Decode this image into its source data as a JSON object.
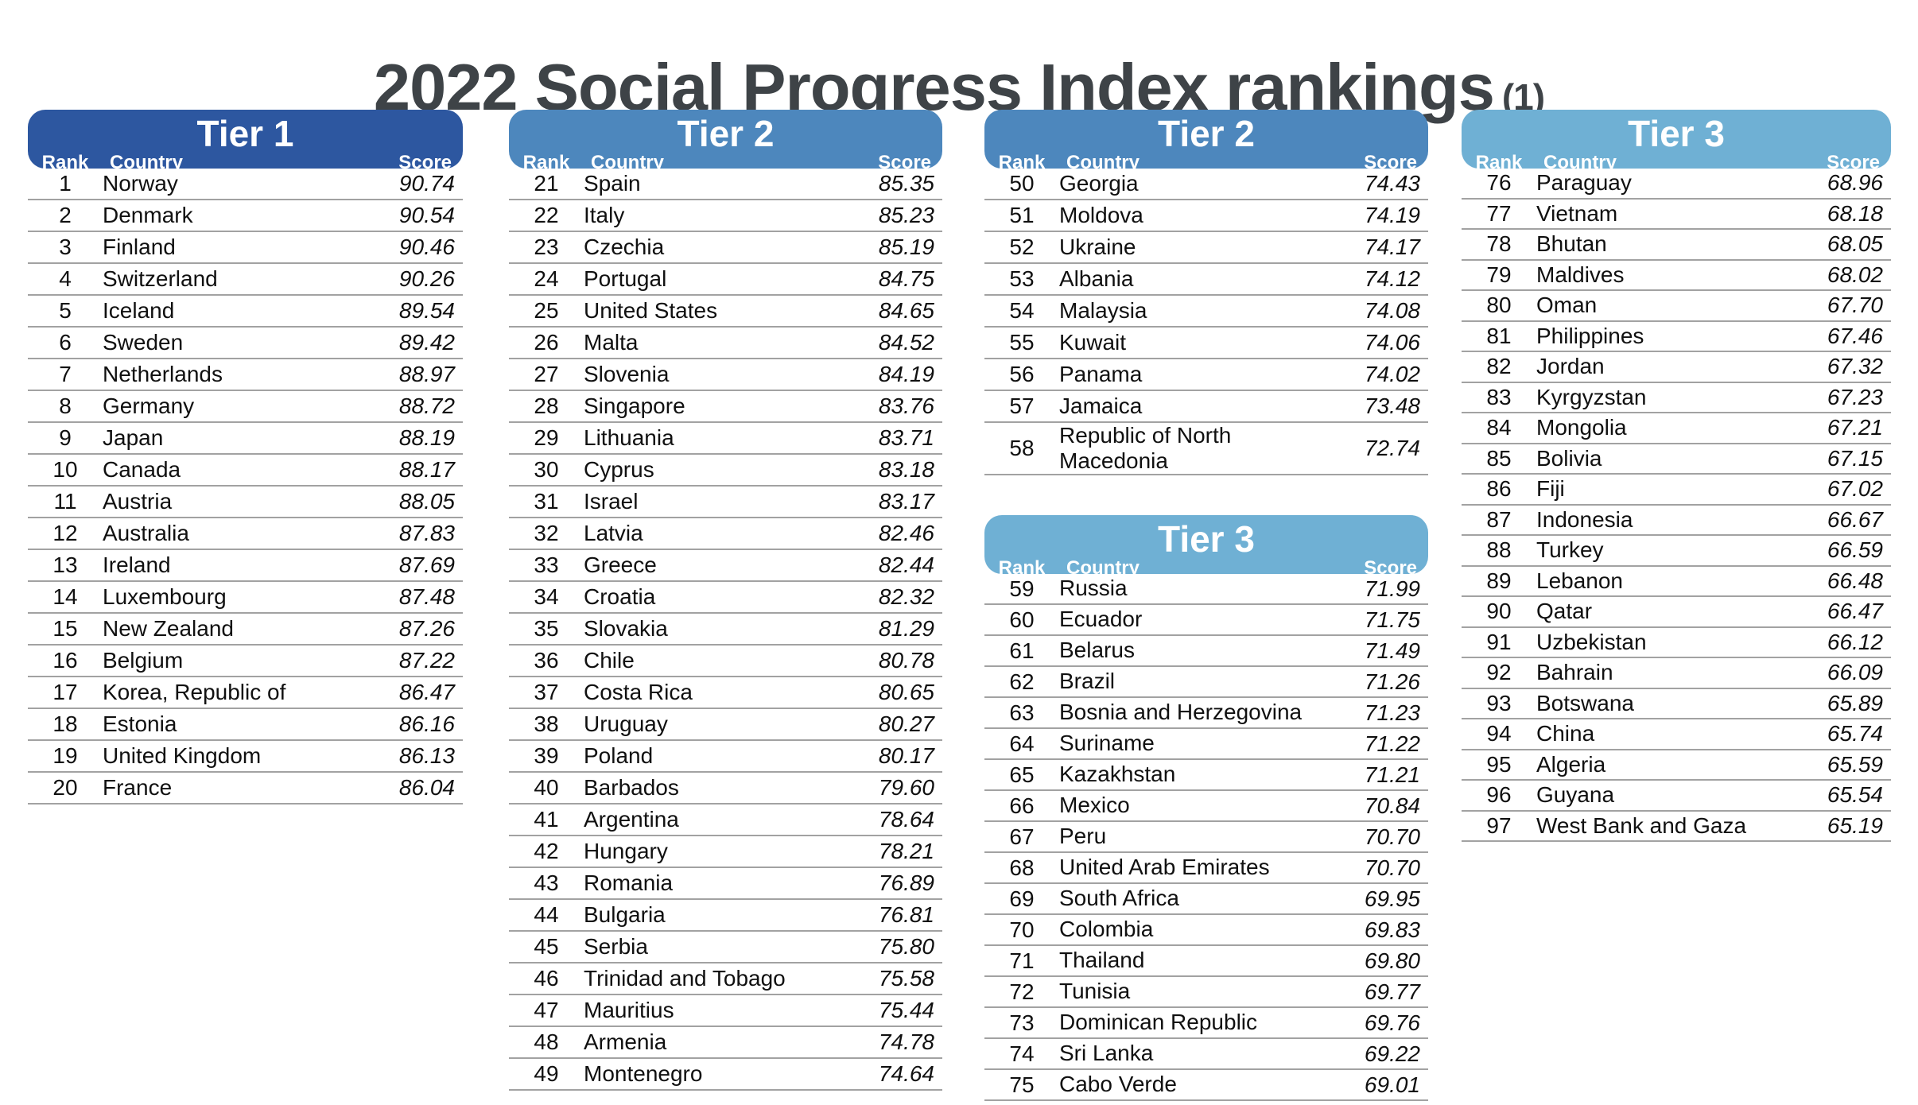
{
  "title": {
    "main": "2022 Social Progress Index rankings",
    "footnote_marker": "(1)"
  },
  "labels": {
    "rank": "Rank",
    "country": "Country",
    "score": "Score"
  },
  "colors": {
    "tier1": "#2d57a0",
    "tier2": "#4d87bd",
    "tier3": "#6fb0d4",
    "title_text": "#3e4347",
    "row_line": "#a2a2a2"
  },
  "tables": [
    {
      "tier_label": "Tier 1",
      "tier": "tier1",
      "rows": [
        [
          "1",
          "Norway",
          "90.74"
        ],
        [
          "2",
          "Denmark",
          "90.54"
        ],
        [
          "3",
          "Finland",
          "90.46"
        ],
        [
          "4",
          "Switzerland",
          "90.26"
        ],
        [
          "5",
          "Iceland",
          "89.54"
        ],
        [
          "6",
          "Sweden",
          "89.42"
        ],
        [
          "7",
          "Netherlands",
          "88.97"
        ],
        [
          "8",
          "Germany",
          "88.72"
        ],
        [
          "9",
          "Japan",
          "88.19"
        ],
        [
          "10",
          "Canada",
          "88.17"
        ],
        [
          "11",
          "Austria",
          "88.05"
        ],
        [
          "12",
          "Australia",
          "87.83"
        ],
        [
          "13",
          "Ireland",
          "87.69"
        ],
        [
          "14",
          "Luxembourg",
          "87.48"
        ],
        [
          "15",
          "New Zealand",
          "87.26"
        ],
        [
          "16",
          "Belgium",
          "87.22"
        ],
        [
          "17",
          "Korea, Republic of",
          "86.47"
        ],
        [
          "18",
          "Estonia",
          "86.16"
        ],
        [
          "19",
          "United Kingdom",
          "86.13"
        ],
        [
          "20",
          "France",
          "86.04"
        ]
      ]
    },
    {
      "tier_label": "Tier 2",
      "tier": "tier2",
      "rows": [
        [
          "21",
          "Spain",
          "85.35"
        ],
        [
          "22",
          "Italy",
          "85.23"
        ],
        [
          "23",
          "Czechia",
          "85.19"
        ],
        [
          "24",
          "Portugal",
          "84.75"
        ],
        [
          "25",
          "United States",
          "84.65"
        ],
        [
          "26",
          "Malta",
          "84.52"
        ],
        [
          "27",
          "Slovenia",
          "84.19"
        ],
        [
          "28",
          "Singapore",
          "83.76"
        ],
        [
          "29",
          "Lithuania",
          "83.71"
        ],
        [
          "30",
          "Cyprus",
          "83.18"
        ],
        [
          "31",
          "Israel",
          "83.17"
        ],
        [
          "32",
          "Latvia",
          "82.46"
        ],
        [
          "33",
          "Greece",
          "82.44"
        ],
        [
          "34",
          "Croatia",
          "82.32"
        ],
        [
          "35",
          "Slovakia",
          "81.29"
        ],
        [
          "36",
          "Chile",
          "80.78"
        ],
        [
          "37",
          "Costa Rica",
          "80.65"
        ],
        [
          "38",
          "Uruguay",
          "80.27"
        ],
        [
          "39",
          "Poland",
          "80.17"
        ],
        [
          "40",
          "Barbados",
          "79.60"
        ],
        [
          "41",
          "Argentina",
          "78.64"
        ],
        [
          "42",
          "Hungary",
          "78.21"
        ],
        [
          "43",
          "Romania",
          "76.89"
        ],
        [
          "44",
          "Bulgaria",
          "76.81"
        ],
        [
          "45",
          "Serbia",
          "75.80"
        ],
        [
          "46",
          "Trinidad and Tobago",
          "75.58"
        ],
        [
          "47",
          "Mauritius",
          "75.44"
        ],
        [
          "48",
          "Armenia",
          "74.78"
        ],
        [
          "49",
          "Montenegro",
          "74.64"
        ]
      ]
    },
    {
      "tier_label": "Tier 2",
      "tier": "tier2",
      "rows": [
        [
          "50",
          "Georgia",
          "74.43"
        ],
        [
          "51",
          "Moldova",
          "74.19"
        ],
        [
          "52",
          "Ukraine",
          "74.17"
        ],
        [
          "53",
          "Albania",
          "74.12"
        ],
        [
          "54",
          "Malaysia",
          "74.08"
        ],
        [
          "55",
          "Kuwait",
          "74.06"
        ],
        [
          "56",
          "Panama",
          "74.02"
        ],
        [
          "57",
          "Jamaica",
          "73.48"
        ],
        [
          "58",
          "Republic of North Macedonia",
          "72.74",
          "tall"
        ]
      ]
    },
    {
      "tier_label": "Tier 3",
      "tier": "tier3",
      "rows": [
        [
          "59",
          "Russia",
          "71.99"
        ],
        [
          "60",
          "Ecuador",
          "71.75"
        ],
        [
          "61",
          "Belarus",
          "71.49"
        ],
        [
          "62",
          "Brazil",
          "71.26"
        ],
        [
          "63",
          "Bosnia and Herzegovina",
          "71.23"
        ],
        [
          "64",
          "Suriname",
          "71.22"
        ],
        [
          "65",
          "Kazakhstan",
          "71.21"
        ],
        [
          "66",
          "Mexico",
          "70.84"
        ],
        [
          "67",
          "Peru",
          "70.70"
        ],
        [
          "68",
          "United Arab Emirates",
          "70.70"
        ],
        [
          "69",
          "South Africa",
          "69.95"
        ],
        [
          "70",
          "Colombia",
          "69.83"
        ],
        [
          "71",
          "Thailand",
          "69.80"
        ],
        [
          "72",
          "Tunisia",
          "69.77"
        ],
        [
          "73",
          "Dominican Republic",
          "69.76"
        ],
        [
          "74",
          "Sri Lanka",
          "69.22"
        ],
        [
          "75",
          "Cabo Verde",
          "69.01"
        ]
      ]
    },
    {
      "tier_label": "Tier 3",
      "tier": "tier3",
      "rows": [
        [
          "76",
          "Paraguay",
          "68.96"
        ],
        [
          "77",
          "Vietnam",
          "68.18"
        ],
        [
          "78",
          "Bhutan",
          "68.05"
        ],
        [
          "79",
          "Maldives",
          "68.02"
        ],
        [
          "80",
          "Oman",
          "67.70"
        ],
        [
          "81",
          "Philippines",
          "67.46"
        ],
        [
          "82",
          "Jordan",
          "67.32"
        ],
        [
          "83",
          "Kyrgyzstan",
          "67.23"
        ],
        [
          "84",
          "Mongolia",
          "67.21"
        ],
        [
          "85",
          "Bolivia",
          "67.15"
        ],
        [
          "86",
          "Fiji",
          "67.02"
        ],
        [
          "87",
          "Indonesia",
          "66.67"
        ],
        [
          "88",
          "Turkey",
          "66.59"
        ],
        [
          "89",
          "Lebanon",
          "66.48"
        ],
        [
          "90",
          "Qatar",
          "66.47"
        ],
        [
          "91",
          "Uzbekistan",
          "66.12"
        ],
        [
          "92",
          "Bahrain",
          "66.09"
        ],
        [
          "93",
          "Botswana",
          "65.89"
        ],
        [
          "94",
          "China",
          "65.74"
        ],
        [
          "95",
          "Algeria",
          "65.59"
        ],
        [
          "96",
          "Guyana",
          "65.54"
        ],
        [
          "97",
          "West Bank and Gaza",
          "65.19"
        ]
      ]
    }
  ]
}
